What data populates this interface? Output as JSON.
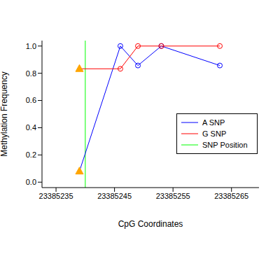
{
  "chart_data": {
    "type": "line",
    "x_label": "CpG Coordinates",
    "y_label": "Methylation Frequency",
    "x": [
      23385239,
      23385246,
      23385249,
      23385253,
      23385263
    ],
    "xlim": [
      23385232.6,
      23385269.7
    ],
    "xticks": [
      23385235,
      23385245,
      23385255,
      23385265
    ],
    "ylim": [
      -0.04,
      1.04
    ],
    "yticks": [
      {
        "value": 0,
        "label": "0.0"
      },
      0.2,
      0.4,
      0.6,
      0.8,
      {
        "value": 1,
        "label": "1.0"
      }
    ],
    "series": [
      {
        "name": "A SNP",
        "color": "#0000ff",
        "marker": "circle",
        "colors": [
          "#ffa500",
          "#0000ff",
          "#0000ff",
          "#0000ff",
          "#0000ff"
        ],
        "values": [
          0.08,
          1.0,
          0.857,
          1.0,
          0.857
        ]
      },
      {
        "name": "G SNP",
        "color": "#ff0000",
        "marker": "circle",
        "colors": [
          "#ffa500",
          "#ff0000",
          "#ff0000",
          "#ff0000",
          "#ff0000"
        ],
        "values": [
          0.833,
          0.833,
          1.0,
          1.0,
          1.0
        ]
      }
    ],
    "snp_position": {
      "name": "SNP Position",
      "value": 23385240,
      "color": "#00ff00"
    },
    "legend": "right"
  }
}
